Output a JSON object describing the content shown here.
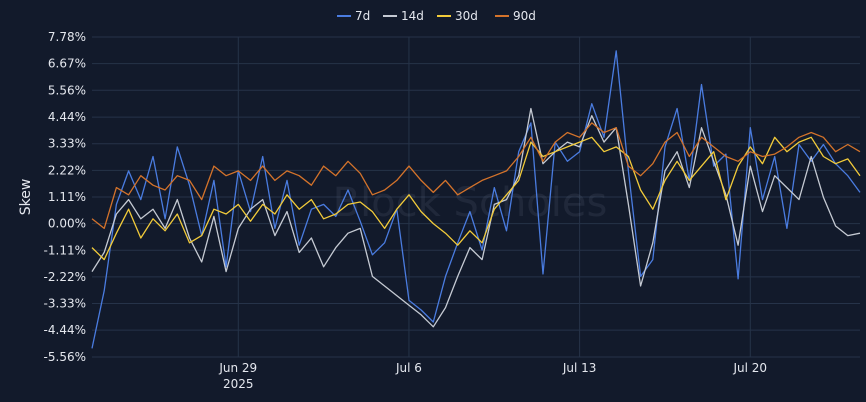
{
  "chart_data": {
    "type": "line",
    "ylabel": "Skew",
    "watermark": "Block Scholes",
    "y_ticks": [
      "7.78%",
      "6.67%",
      "5.56%",
      "4.44%",
      "3.33%",
      "2.22%",
      "1.11%",
      "0.00%",
      "-1.11%",
      "-2.22%",
      "-3.33%",
      "-4.44%",
      "-5.56%"
    ],
    "ylim": [
      -5.56,
      7.78
    ],
    "x_range": [
      "2025-06-23",
      "2025-07-24T12:00"
    ],
    "x_ticks": [
      {
        "date": "2025-06-29",
        "label": "Jun 29",
        "sublabel": "2025"
      },
      {
        "date": "2025-07-06",
        "label": "Jul 6",
        "sublabel": ""
      },
      {
        "date": "2025-07-13",
        "label": "Jul 13",
        "sublabel": ""
      },
      {
        "date": "2025-07-20",
        "label": "Jul 20",
        "sublabel": ""
      }
    ],
    "grid": true,
    "legend_position": "top-center",
    "series": [
      {
        "name": "7d",
        "color": "#4a7ce0",
        "x": [
          "2025-06-23",
          "2025-06-23T12:00",
          "2025-06-24",
          "2025-06-24T12:00",
          "2025-06-25",
          "2025-06-25T12:00",
          "2025-06-26",
          "2025-06-26T12:00",
          "2025-06-27",
          "2025-06-27T12:00",
          "2025-06-28",
          "2025-06-28T12:00",
          "2025-06-29",
          "2025-06-29T12:00",
          "2025-06-30",
          "2025-06-30T12:00",
          "2025-07-01",
          "2025-07-01T12:00",
          "2025-07-02",
          "2025-07-02T12:00",
          "2025-07-03",
          "2025-07-03T12:00",
          "2025-07-04",
          "2025-07-04T12:00",
          "2025-07-05",
          "2025-07-05T12:00",
          "2025-07-06",
          "2025-07-06T12:00",
          "2025-07-07",
          "2025-07-07T12:00",
          "2025-07-08",
          "2025-07-08T12:00",
          "2025-07-09",
          "2025-07-09T12:00",
          "2025-07-10",
          "2025-07-10T12:00",
          "2025-07-11",
          "2025-07-11T12:00",
          "2025-07-12",
          "2025-07-12T12:00",
          "2025-07-13",
          "2025-07-13T12:00",
          "2025-07-14",
          "2025-07-14T12:00",
          "2025-07-15",
          "2025-07-15T12:00",
          "2025-07-16",
          "2025-07-16T12:00",
          "2025-07-17",
          "2025-07-17T12:00",
          "2025-07-18",
          "2025-07-18T12:00",
          "2025-07-19",
          "2025-07-19T12:00",
          "2025-07-20",
          "2025-07-20T12:00",
          "2025-07-21",
          "2025-07-21T12:00",
          "2025-07-22",
          "2025-07-22T12:00",
          "2025-07-23",
          "2025-07-23T12:00",
          "2025-07-24",
          "2025-07-24T12:00"
        ],
        "values": [
          -5.2,
          -2.8,
          0.8,
          2.2,
          1.0,
          2.8,
          0.2,
          3.2,
          1.6,
          -0.5,
          1.8,
          -1.8,
          2.2,
          0.5,
          2.8,
          -0.2,
          1.8,
          -0.9,
          0.6,
          0.8,
          0.3,
          1.4,
          0.1,
          -1.3,
          -0.8,
          0.6,
          -3.2,
          -3.6,
          -4.1,
          -2.2,
          -0.8,
          0.5,
          -1.1,
          1.5,
          -0.3,
          3.0,
          4.2,
          -2.1,
          3.4,
          2.6,
          3.0,
          5.0,
          3.6,
          7.2,
          2.2,
          -2.2,
          -1.5,
          3.2,
          4.8,
          1.8,
          5.8,
          2.4,
          2.9,
          -2.3,
          4.0,
          1.0,
          2.8,
          -0.2,
          3.3,
          2.6,
          3.3,
          2.5,
          2.0,
          1.3
        ]
      },
      {
        "name": "14d",
        "color": "#c5cad3",
        "x": [
          "2025-06-23",
          "2025-06-23T12:00",
          "2025-06-24",
          "2025-06-24T12:00",
          "2025-06-25",
          "2025-06-25T12:00",
          "2025-06-26",
          "2025-06-26T12:00",
          "2025-06-27",
          "2025-06-27T12:00",
          "2025-06-28",
          "2025-06-28T12:00",
          "2025-06-29",
          "2025-06-29T12:00",
          "2025-06-30",
          "2025-06-30T12:00",
          "2025-07-01",
          "2025-07-01T12:00",
          "2025-07-02",
          "2025-07-02T12:00",
          "2025-07-03",
          "2025-07-03T12:00",
          "2025-07-04",
          "2025-07-04T12:00",
          "2025-07-05",
          "2025-07-05T12:00",
          "2025-07-06",
          "2025-07-06T12:00",
          "2025-07-07",
          "2025-07-07T12:00",
          "2025-07-08",
          "2025-07-08T12:00",
          "2025-07-09",
          "2025-07-09T12:00",
          "2025-07-10",
          "2025-07-10T12:00",
          "2025-07-11",
          "2025-07-11T12:00",
          "2025-07-12",
          "2025-07-12T12:00",
          "2025-07-13",
          "2025-07-13T12:00",
          "2025-07-14",
          "2025-07-14T12:00",
          "2025-07-15",
          "2025-07-15T12:00",
          "2025-07-16",
          "2025-07-16T12:00",
          "2025-07-17",
          "2025-07-17T12:00",
          "2025-07-18",
          "2025-07-18T12:00",
          "2025-07-19",
          "2025-07-19T12:00",
          "2025-07-20",
          "2025-07-20T12:00",
          "2025-07-21",
          "2025-07-21T12:00",
          "2025-07-22",
          "2025-07-22T12:00",
          "2025-07-23",
          "2025-07-23T12:00",
          "2025-07-24",
          "2025-07-24T12:00"
        ],
        "values": [
          -2.0,
          -1.2,
          0.4,
          1.0,
          0.2,
          0.6,
          -0.2,
          1.0,
          -0.6,
          -1.6,
          0.3,
          -2.0,
          -0.2,
          0.6,
          1.0,
          -0.5,
          0.5,
          -1.2,
          -0.6,
          -1.8,
          -1.0,
          -0.4,
          -0.2,
          -2.2,
          -2.6,
          -3.0,
          -3.4,
          -3.8,
          -4.3,
          -3.5,
          -2.2,
          -1.0,
          -1.5,
          0.8,
          1.0,
          2.0,
          4.8,
          2.5,
          3.0,
          3.4,
          3.2,
          4.5,
          3.4,
          4.0,
          0.8,
          -2.6,
          -0.8,
          2.2,
          3.0,
          1.5,
          4.0,
          2.6,
          1.2,
          -0.9,
          2.4,
          0.5,
          2.0,
          1.5,
          1.0,
          2.8,
          1.1,
          -0.1,
          -0.5,
          -0.4
        ]
      },
      {
        "name": "30d",
        "color": "#f2cb3a",
        "x": [
          "2025-06-23",
          "2025-06-23T12:00",
          "2025-06-24",
          "2025-06-24T12:00",
          "2025-06-25",
          "2025-06-25T12:00",
          "2025-06-26",
          "2025-06-26T12:00",
          "2025-06-27",
          "2025-06-27T12:00",
          "2025-06-28",
          "2025-06-28T12:00",
          "2025-06-29",
          "2025-06-29T12:00",
          "2025-06-30",
          "2025-06-30T12:00",
          "2025-07-01",
          "2025-07-01T12:00",
          "2025-07-02",
          "2025-07-02T12:00",
          "2025-07-03",
          "2025-07-03T12:00",
          "2025-07-04",
          "2025-07-04T12:00",
          "2025-07-05",
          "2025-07-05T12:00",
          "2025-07-06",
          "2025-07-06T12:00",
          "2025-07-07",
          "2025-07-07T12:00",
          "2025-07-08",
          "2025-07-08T12:00",
          "2025-07-09",
          "2025-07-09T12:00",
          "2025-07-10",
          "2025-07-10T12:00",
          "2025-07-11",
          "2025-07-11T12:00",
          "2025-07-12",
          "2025-07-12T12:00",
          "2025-07-13",
          "2025-07-13T12:00",
          "2025-07-14",
          "2025-07-14T12:00",
          "2025-07-15",
          "2025-07-15T12:00",
          "2025-07-16",
          "2025-07-16T12:00",
          "2025-07-17",
          "2025-07-17T12:00",
          "2025-07-18",
          "2025-07-18T12:00",
          "2025-07-19",
          "2025-07-19T12:00",
          "2025-07-20",
          "2025-07-20T12:00",
          "2025-07-21",
          "2025-07-21T12:00",
          "2025-07-22",
          "2025-07-22T12:00",
          "2025-07-23",
          "2025-07-23T12:00",
          "2025-07-24",
          "2025-07-24T12:00"
        ],
        "values": [
          -1.0,
          -1.5,
          -0.4,
          0.6,
          -0.6,
          0.2,
          -0.3,
          0.4,
          -0.8,
          -0.5,
          0.6,
          0.4,
          0.8,
          0.1,
          0.8,
          0.4,
          1.2,
          0.6,
          1.0,
          0.2,
          0.4,
          0.8,
          0.9,
          0.5,
          -0.2,
          0.6,
          1.2,
          0.5,
          0.0,
          -0.4,
          -0.9,
          -0.3,
          -0.8,
          0.6,
          1.2,
          1.8,
          3.4,
          2.8,
          3.0,
          3.2,
          3.4,
          3.6,
          3.0,
          3.2,
          2.8,
          1.4,
          0.6,
          1.8,
          2.6,
          1.8,
          2.4,
          3.0,
          1.0,
          2.4,
          3.2,
          2.5,
          3.6,
          3.0,
          3.4,
          3.6,
          2.8,
          2.5,
          2.7,
          2.0
        ]
      },
      {
        "name": "90d",
        "color": "#d4732b",
        "x": [
          "2025-06-23",
          "2025-06-23T12:00",
          "2025-06-24",
          "2025-06-24T12:00",
          "2025-06-25",
          "2025-06-25T12:00",
          "2025-06-26",
          "2025-06-26T12:00",
          "2025-06-27",
          "2025-06-27T12:00",
          "2025-06-28",
          "2025-06-28T12:00",
          "2025-06-29",
          "2025-06-29T12:00",
          "2025-06-30",
          "2025-06-30T12:00",
          "2025-07-01",
          "2025-07-01T12:00",
          "2025-07-02",
          "2025-07-02T12:00",
          "2025-07-03",
          "2025-07-03T12:00",
          "2025-07-04",
          "2025-07-04T12:00",
          "2025-07-05",
          "2025-07-05T12:00",
          "2025-07-06",
          "2025-07-06T12:00",
          "2025-07-07",
          "2025-07-07T12:00",
          "2025-07-08",
          "2025-07-08T12:00",
          "2025-07-09",
          "2025-07-09T12:00",
          "2025-07-10",
          "2025-07-10T12:00",
          "2025-07-11",
          "2025-07-11T12:00",
          "2025-07-12",
          "2025-07-12T12:00",
          "2025-07-13",
          "2025-07-13T12:00",
          "2025-07-14",
          "2025-07-14T12:00",
          "2025-07-15",
          "2025-07-15T12:00",
          "2025-07-16",
          "2025-07-16T12:00",
          "2025-07-17",
          "2025-07-17T12:00",
          "2025-07-18",
          "2025-07-18T12:00",
          "2025-07-19",
          "2025-07-19T12:00",
          "2025-07-20",
          "2025-07-20T12:00",
          "2025-07-21",
          "2025-07-21T12:00",
          "2025-07-22",
          "2025-07-22T12:00",
          "2025-07-23",
          "2025-07-23T12:00",
          "2025-07-24",
          "2025-07-24T12:00"
        ],
        "values": [
          0.2,
          -0.2,
          1.5,
          1.2,
          2.0,
          1.6,
          1.4,
          2.0,
          1.8,
          1.0,
          2.4,
          2.0,
          2.2,
          1.8,
          2.4,
          1.8,
          2.2,
          2.0,
          1.6,
          2.4,
          2.0,
          2.6,
          2.1,
          1.2,
          1.4,
          1.8,
          2.4,
          1.8,
          1.3,
          1.8,
          1.2,
          1.5,
          1.8,
          2.0,
          2.2,
          2.8,
          3.6,
          2.6,
          3.4,
          3.8,
          3.6,
          4.2,
          3.8,
          4.0,
          2.4,
          2.0,
          2.5,
          3.4,
          3.8,
          2.8,
          3.6,
          3.2,
          2.8,
          2.6,
          3.0,
          2.8,
          2.9,
          3.2,
          3.6,
          3.8,
          3.6,
          3.0,
          3.3,
          3.0
        ]
      }
    ]
  }
}
